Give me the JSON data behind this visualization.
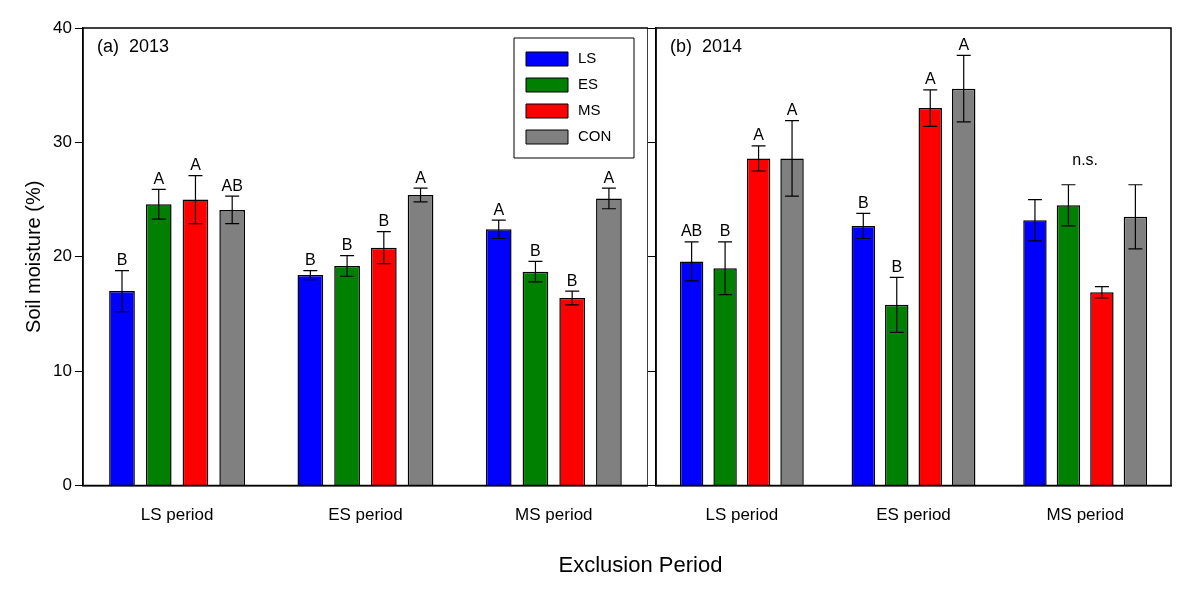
{
  "chart_data": [
    {
      "type": "bar",
      "title": "(a)  2013",
      "ylabel": "Soil moisture (%)",
      "xlabel": "Exclusion Period",
      "categories": [
        "LS period",
        "ES period",
        "MS period"
      ],
      "series": [
        {
          "name": "LS",
          "color": "#0000ff",
          "values": [
            17.0,
            18.4,
            22.4
          ],
          "errors": [
            1.8,
            0.4,
            0.8
          ]
        },
        {
          "name": "ES",
          "color": "#008000",
          "values": [
            24.6,
            19.2,
            18.7
          ],
          "errors": [
            1.3,
            0.9,
            0.9
          ]
        },
        {
          "name": "MS",
          "color": "#ff0000",
          "values": [
            25.0,
            20.8,
            16.4
          ],
          "errors": [
            2.1,
            1.4,
            0.6
          ]
        },
        {
          "name": "CON",
          "color": "#808080",
          "values": [
            24.1,
            25.4,
            25.1
          ],
          "errors": [
            1.2,
            0.6,
            0.9
          ]
        }
      ],
      "ylim": [
        0,
        40
      ],
      "yticks": [
        0,
        10,
        20,
        30,
        40
      ],
      "legend": "top right",
      "annotations": [
        "B",
        "A",
        "A",
        "AB",
        "B",
        "B",
        "B",
        "A",
        "A",
        "B",
        "B",
        "A"
      ]
    },
    {
      "type": "bar",
      "title": "(b)  2014",
      "categories": [
        "LS period",
        "ES period",
        "MS period"
      ],
      "series": [
        {
          "color": "#0000ff",
          "values": [
            19.6,
            22.7,
            23.2
          ],
          "errors": [
            1.7,
            1.1,
            1.8
          ]
        },
        {
          "color": "#008000",
          "values": [
            19.0,
            15.8,
            24.5
          ],
          "errors": [
            2.3,
            2.4,
            1.8
          ]
        },
        {
          "color": "#ff0000",
          "values": [
            28.6,
            33.0,
            16.9
          ],
          "errors": [
            1.1,
            1.6,
            0.5
          ]
        },
        {
          "color": "#808080",
          "values": [
            28.6,
            34.7,
            23.5
          ],
          "errors": [
            3.3,
            2.9,
            2.8
          ]
        }
      ],
      "ylim": [
        0,
        40
      ],
      "yticks": [
        0,
        10,
        20,
        30,
        40
      ],
      "tick_labels": "x",
      "annotations": [
        "AB",
        "B",
        "A",
        "A",
        "B",
        "B",
        "A",
        "A",
        "n.s."
      ]
    }
  ]
}
